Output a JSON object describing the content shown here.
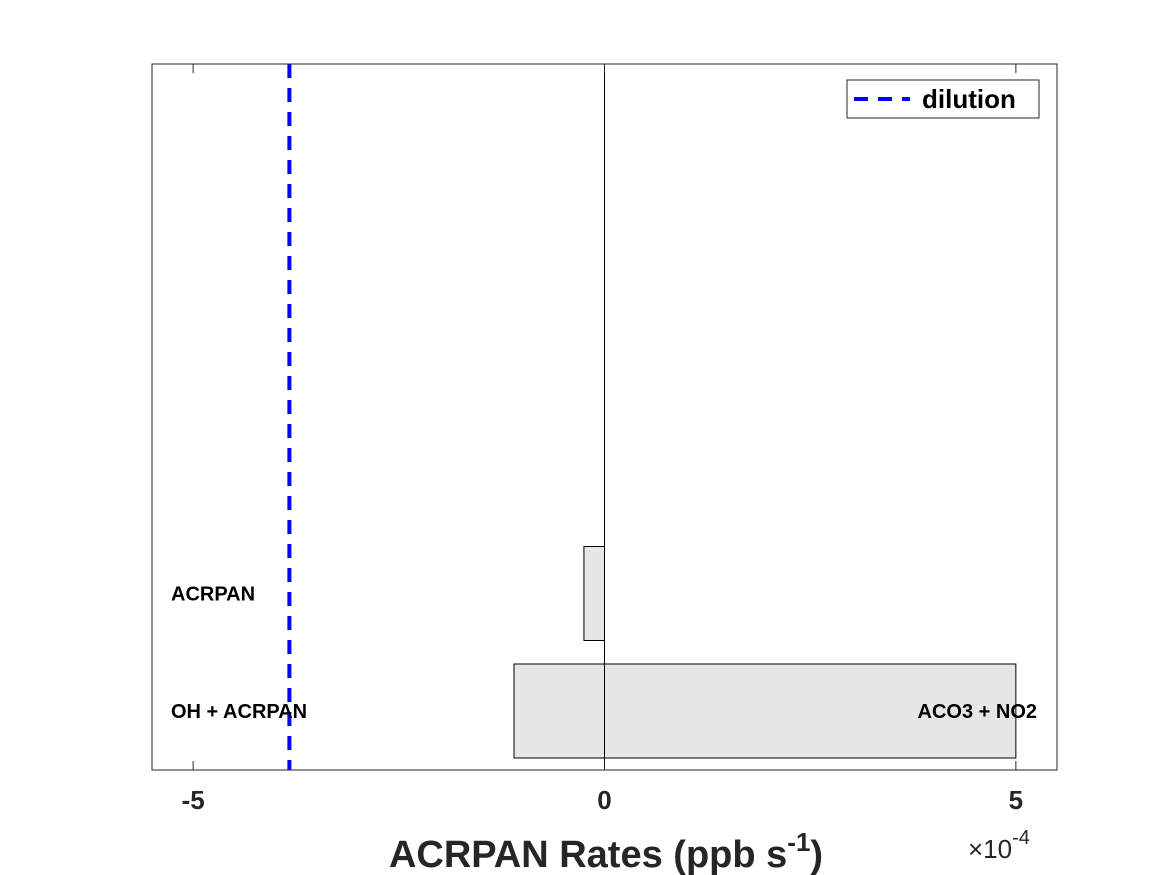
{
  "chart_data": {
    "type": "bar",
    "orientation": "horizontal",
    "stacked": true,
    "xlabel_main": "ACRPAN Rates (ppb s",
    "xlabel_sup": "-1",
    "xlabel_close": ")",
    "x_multiplier": {
      "prefix": "×10",
      "exponent": "-4"
    },
    "xlim": [
      -5.5,
      5.5
    ],
    "x_ticks": [
      {
        "value": -5,
        "label": "-5"
      },
      {
        "value": 0,
        "label": "0"
      },
      {
        "value": 5,
        "label": "5"
      }
    ],
    "rows": [
      {
        "index": 1,
        "loss_label": "OH + ACRPAN",
        "gain_label": "ACO3 + NO2",
        "loss": -1.1,
        "gain": 5.0
      },
      {
        "index": 2,
        "loss_label": "ACRPAN",
        "gain_label": "",
        "loss": -0.25,
        "gain": 0
      }
    ],
    "row_count": 7,
    "dilution": {
      "name": "dilution",
      "value": -3.83,
      "color": "#0000ff",
      "style": "dashed"
    },
    "bar_fill": "#e6e6e6",
    "bar_edge": "#000000",
    "legend_position": "top-right",
    "grid": false
  }
}
